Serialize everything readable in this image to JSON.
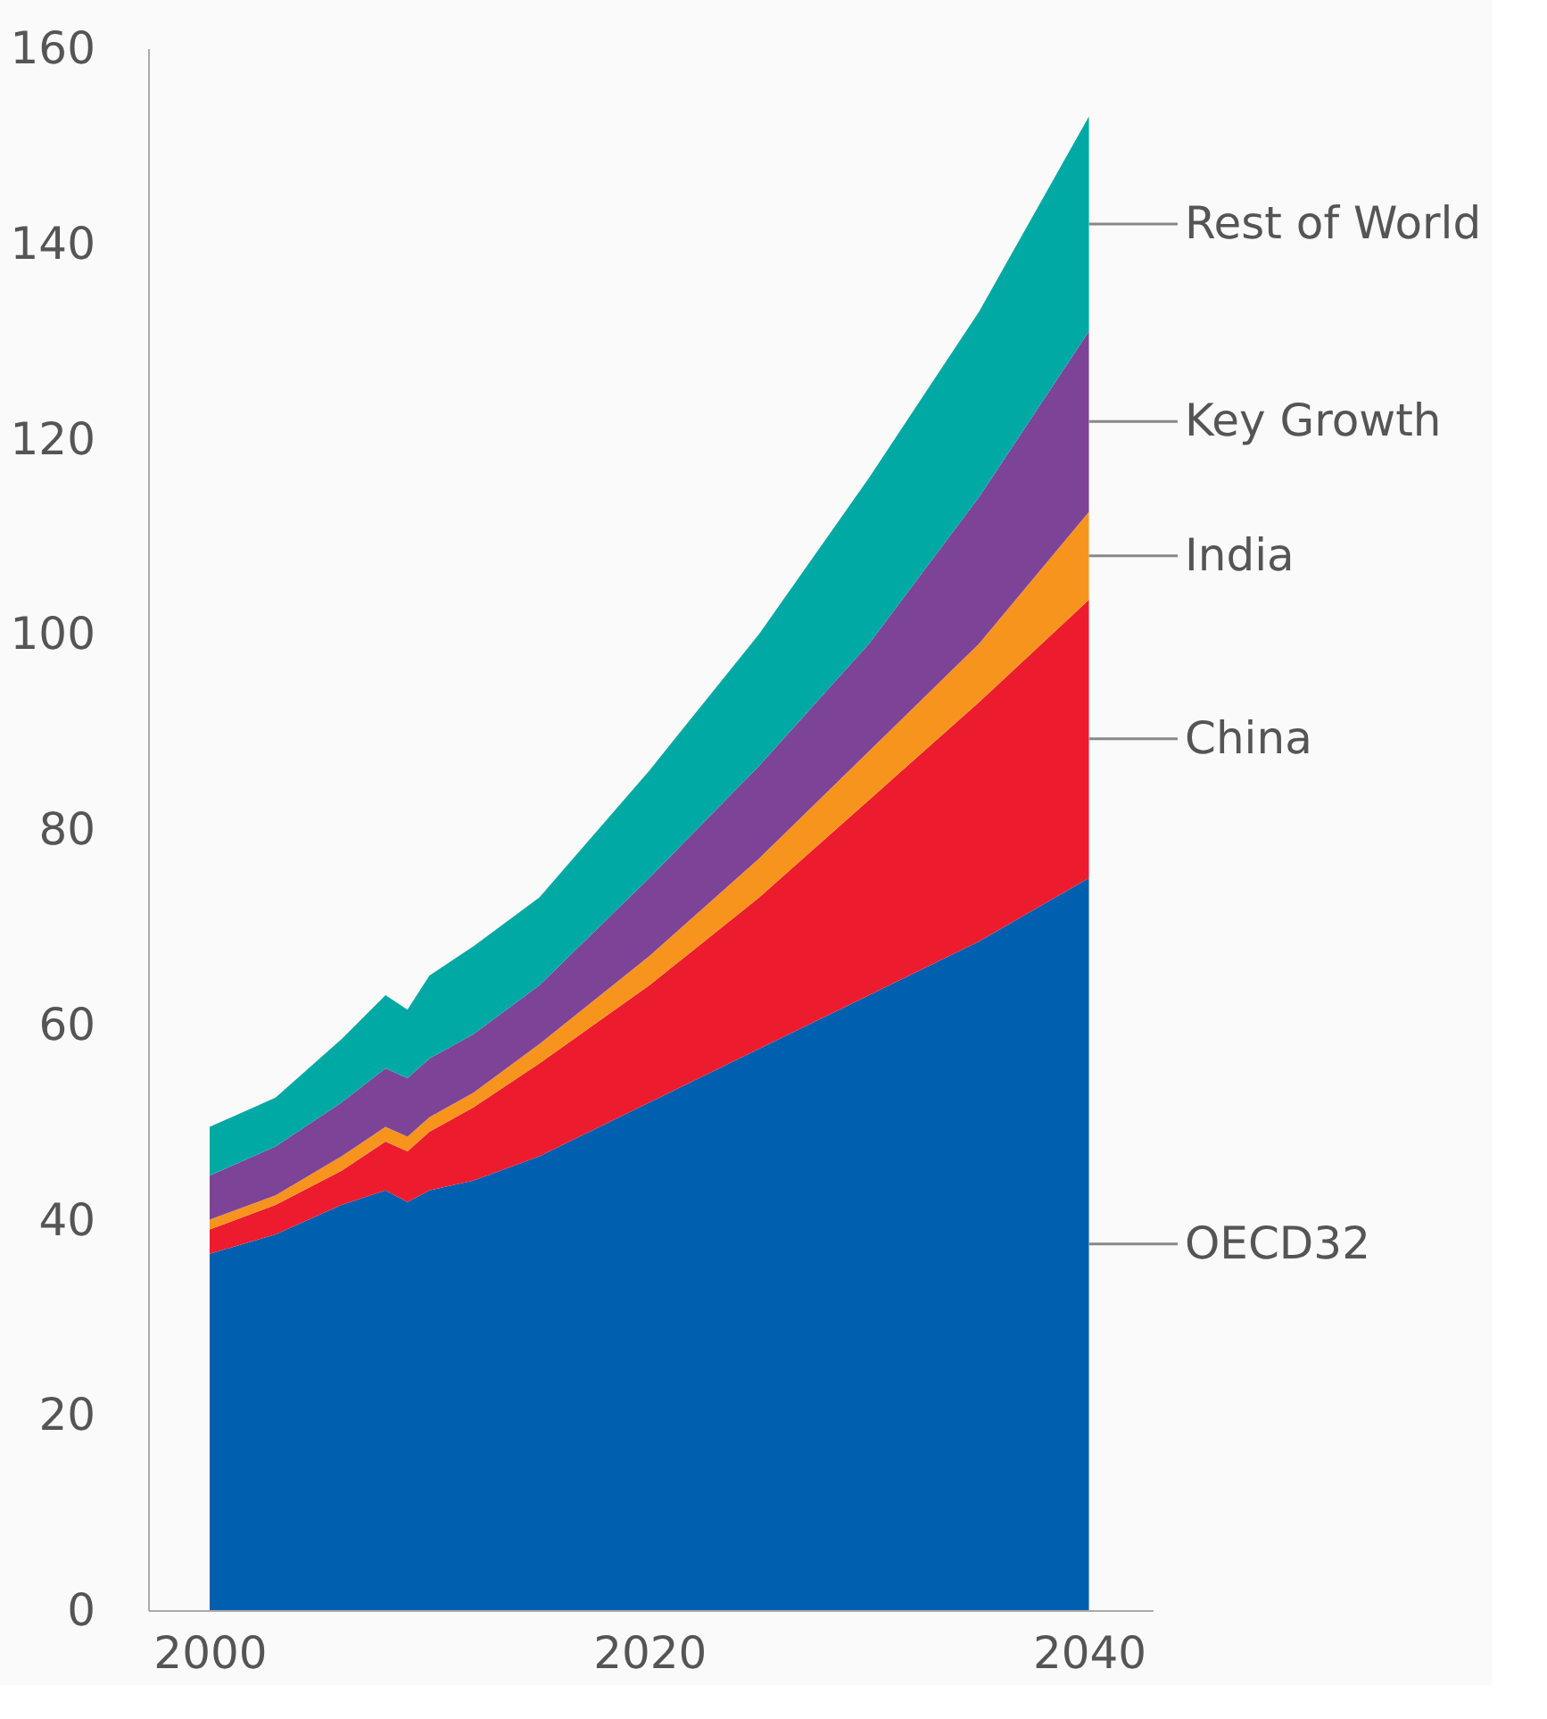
{
  "chart_data": {
    "type": "area",
    "stacked": true,
    "x": [
      2000,
      2003,
      2006,
      2008,
      2009,
      2010,
      2012,
      2015,
      2020,
      2025,
      2030,
      2035,
      2040
    ],
    "series": [
      {
        "name": "OECD32",
        "color": "#0060af",
        "values": [
          36.5,
          38.5,
          41.5,
          43,
          41.8,
          43,
          44,
          46.5,
          52,
          57.5,
          63,
          68.5,
          75
        ]
      },
      {
        "name": "China",
        "color": "#ec1c2e",
        "values": [
          2.5,
          3,
          3.5,
          5,
          5.2,
          6,
          7.5,
          9.5,
          12,
          15.5,
          20,
          24.5,
          28.5
        ]
      },
      {
        "name": "India",
        "color": "#f7941d",
        "values": [
          1,
          1,
          1.5,
          1.5,
          1.5,
          1.5,
          1.5,
          2,
          3,
          4,
          5,
          6,
          9
        ]
      },
      {
        "name": "Key Growth",
        "color": "#7d4396",
        "values": [
          4.5,
          5,
          5.5,
          6,
          6,
          6,
          6,
          6,
          8,
          9.5,
          11,
          15,
          18.5
        ]
      },
      {
        "name": "Rest of World",
        "color": "#00a9a4",
        "values": [
          5,
          5,
          6.5,
          7.5,
          7,
          8.5,
          9,
          9,
          11,
          13.5,
          17,
          19,
          22
        ]
      }
    ],
    "xlim": [
      1997.2,
      2042.9
    ],
    "xticks": [
      2000,
      2020,
      2040
    ],
    "ylim": [
      0,
      160
    ],
    "yticks": [
      0,
      20,
      40,
      60,
      80,
      100,
      120,
      140,
      160
    ],
    "grid": false
  }
}
